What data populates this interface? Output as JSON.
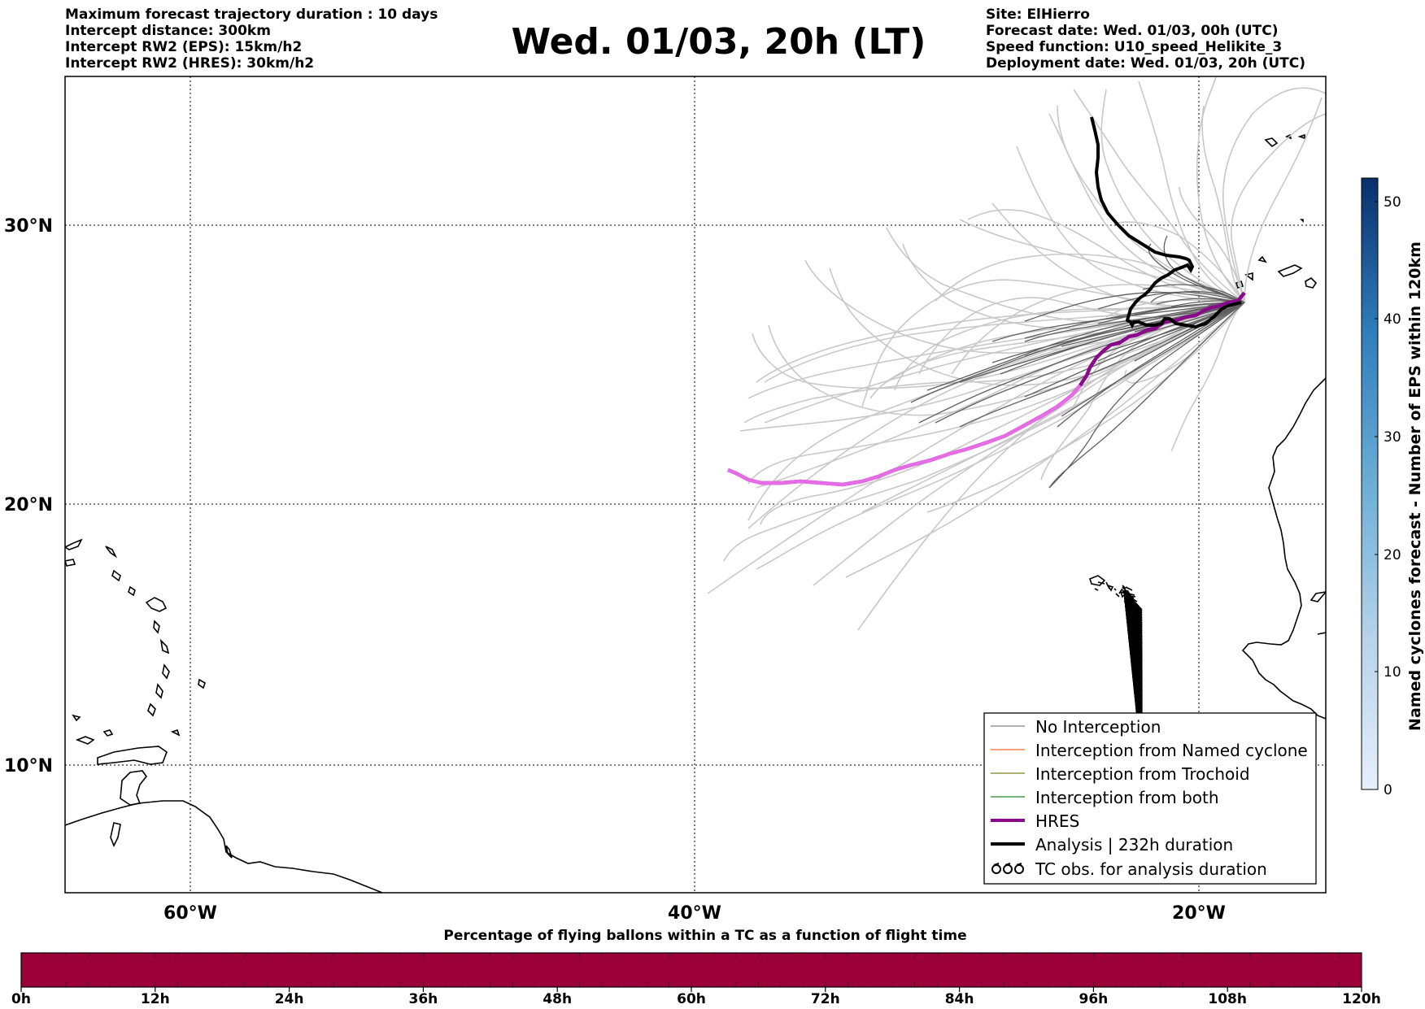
{
  "header_left": [
    "Maximum forecast trajectory duration : 10 days",
    "Intercept distance: 300km",
    "Intercept RW2 (EPS):  15km/h2",
    "Intercept RW2 (HRES): 30km/h2"
  ],
  "title": "Wed. 01/03, 20h (LT)",
  "header_right": [
    "Site: ElHierro",
    "Forecast date: Wed. 01/03, 00h (UTC)",
    "Speed function: U10_speed_Helikite_3",
    "Deployment date: Wed. 01/03, 20h (UTC)"
  ],
  "map": {
    "lon_range": [
      -70,
      10
    ],
    "lat_range": [
      5,
      35
    ],
    "lat_tick_labels": [
      "30°N",
      "20°N",
      "10°N"
    ],
    "lon_tick_labels": [
      "60°W",
      "40°W",
      "20°W"
    ],
    "gridlines": "dotted"
  },
  "legend": {
    "items": [
      {
        "label": "No Interception",
        "color": "#808080"
      },
      {
        "label": "Interception from Named cyclone",
        "color": "#ff6a2a"
      },
      {
        "label": "Interception from Trochoid",
        "color": "#808020"
      },
      {
        "label": "Interception from both",
        "color": "#228b22"
      },
      {
        "label": "HRES",
        "color": "#8b0a8b"
      },
      {
        "label": "Analysis | 232h duration",
        "color": "#000000"
      },
      {
        "label": "TC obs. for analysis duration",
        "color": "#000000"
      }
    ]
  },
  "colorbar": {
    "label": "Named cyclones forecast - Number of EPS within 120km",
    "ticks": [
      "0",
      "10",
      "20",
      "30",
      "40",
      "50"
    ],
    "range": [
      0,
      52
    ],
    "color_low": "#e3eef9",
    "color_high": "#08306b"
  },
  "timebar": {
    "label": "Percentage of flying ballons within a TC as a function of flight time",
    "ticks": [
      "0h",
      "12h",
      "24h",
      "36h",
      "48h",
      "60h",
      "72h",
      "84h",
      "96h",
      "108h",
      "120h"
    ],
    "fill_color": "#9b0038"
  }
}
